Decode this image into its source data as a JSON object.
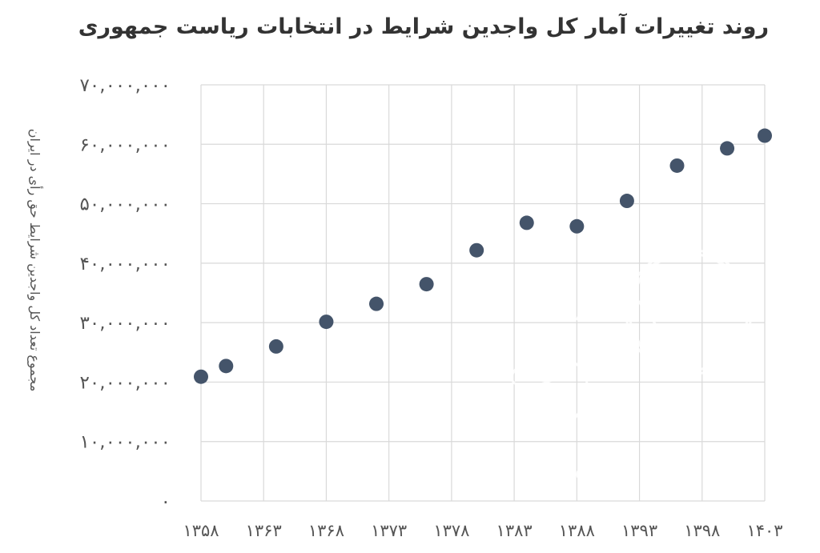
{
  "chart_data": {
    "type": "scatter",
    "title": "روند تغییرات آمار کل واجدین شرایط در انتخابات ریاست جمهوری",
    "ylabel": "مجموع تعداد کل واجدین شرایط حق رأی در ایران",
    "xlabel": "",
    "xlim": [
      1358,
      1403
    ],
    "ylim": [
      0,
      70000000
    ],
    "x_ticks": [
      1358,
      1363,
      1368,
      1373,
      1378,
      1383,
      1388,
      1393,
      1398,
      1403
    ],
    "x_tick_labels": [
      "۱۳۵۸",
      "۱۳۶۳",
      "۱۳۶۸",
      "۱۳۷۳",
      "۱۳۷۸",
      "۱۳۸۳",
      "۱۳۸۸",
      "۱۳۹۳",
      "۱۳۹۸",
      "۱۴۰۳"
    ],
    "y_ticks": [
      0,
      10000000,
      20000000,
      30000000,
      40000000,
      50000000,
      60000000,
      70000000
    ],
    "y_tick_labels": [
      "۰",
      "۱۰,۰۰۰,۰۰۰",
      "۲۰,۰۰۰,۰۰۰",
      "۳۰,۰۰۰,۰۰۰",
      "۴۰,۰۰۰,۰۰۰",
      "۵۰,۰۰۰,۰۰۰",
      "۶۰,۰۰۰,۰۰۰",
      "۷۰,۰۰۰,۰۰۰"
    ],
    "grid": true,
    "marker_color": "#44546a",
    "points": [
      {
        "x": 1358,
        "y": 20900000
      },
      {
        "x": 1360,
        "y": 22700000
      },
      {
        "x": 1364,
        "y": 25990000
      },
      {
        "x": 1368,
        "y": 30140000
      },
      {
        "x": 1372,
        "y": 33160000
      },
      {
        "x": 1376,
        "y": 36470000
      },
      {
        "x": 1380,
        "y": 42170000
      },
      {
        "x": 1384,
        "y": 46790000
      },
      {
        "x": 1388,
        "y": 46200000
      },
      {
        "x": 1392,
        "y": 50480000
      },
      {
        "x": 1396,
        "y": 56410000
      },
      {
        "x": 1400,
        "y": 59310000
      },
      {
        "x": 1403,
        "y": 61450000
      }
    ]
  },
  "watermark": {
    "logo_text": "وقیه",
    "site_text": "d-mag.ir"
  }
}
